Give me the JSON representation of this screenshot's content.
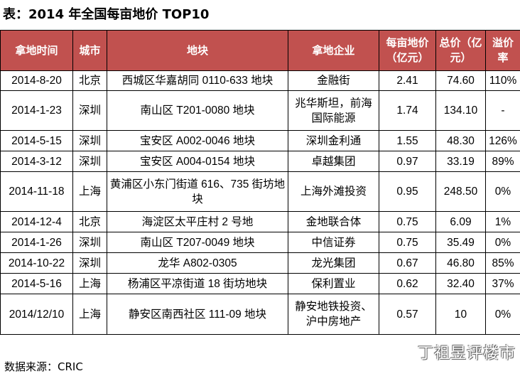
{
  "title": "表：2014 年全国每亩地价 TOP10",
  "headers": [
    "拿地时间",
    "城市",
    "地块",
    "拿地企业",
    "每亩地价（亿元）",
    "总价（亿元）",
    "溢价率"
  ],
  "rows": [
    {
      "date": "2014-8-20",
      "city": "北京",
      "plot": "西城区华嘉胡同 0110-633 地块",
      "company": "金融街",
      "price_per_mu": "2.41",
      "total": "74.60",
      "premium": "110%"
    },
    {
      "date": "2014-1-23",
      "city": "深圳",
      "plot": "南山区 T201-0080 地块",
      "company": "兆华斯坦，前海国际能源",
      "price_per_mu": "1.74",
      "total": "134.10",
      "premium": "-"
    },
    {
      "date": "2014-5-15",
      "city": "深圳",
      "plot": "宝安区 A002-0046 地块",
      "company": "深圳金利通",
      "price_per_mu": "1.55",
      "total": "48.30",
      "premium": "126%"
    },
    {
      "date": "2014-3-12",
      "city": "深圳",
      "plot": "宝安区 A004-0154 地块",
      "company": "卓越集团",
      "price_per_mu": "0.97",
      "total": "33.19",
      "premium": "89%"
    },
    {
      "date": "2014-11-18",
      "city": "上海",
      "plot": "黄浦区小东门街道 616、735 街坊地块",
      "company": "上海外滩投资",
      "price_per_mu": "0.95",
      "total": "248.50",
      "premium": "0%"
    },
    {
      "date": "2014-12-4",
      "city": "北京",
      "plot": "海淀区太平庄村 2 号地",
      "company": "金地联合体",
      "price_per_mu": "0.75",
      "total": "6.09",
      "premium": "1%"
    },
    {
      "date": "2014-1-26",
      "city": "深圳",
      "plot": "南山区 T207-0049 地块",
      "company": "中信证券",
      "price_per_mu": "0.75",
      "total": "35.49",
      "premium": "0%"
    },
    {
      "date": "2014-10-22",
      "city": "深圳",
      "plot": "龙华 A802-0305",
      "company": "龙光集团",
      "price_per_mu": "0.67",
      "total": "46.80",
      "premium": "85%"
    },
    {
      "date": "2014-5-16",
      "city": "上海",
      "plot": "杨浦区平凉街道 18 街坊地块",
      "company": "保利置业",
      "price_per_mu": "0.62",
      "total": "32.40",
      "premium": "37%"
    },
    {
      "date": "2014/12/10",
      "city": "上海",
      "plot": "静安区南西社区 111-09 地块",
      "company": "静安地铁投资、沪中房地产",
      "price_per_mu": "0.57",
      "total": "10",
      "premium": "0%"
    }
  ],
  "source": "数据来源：CRIC",
  "watermark": "丁祖昱评楼市"
}
